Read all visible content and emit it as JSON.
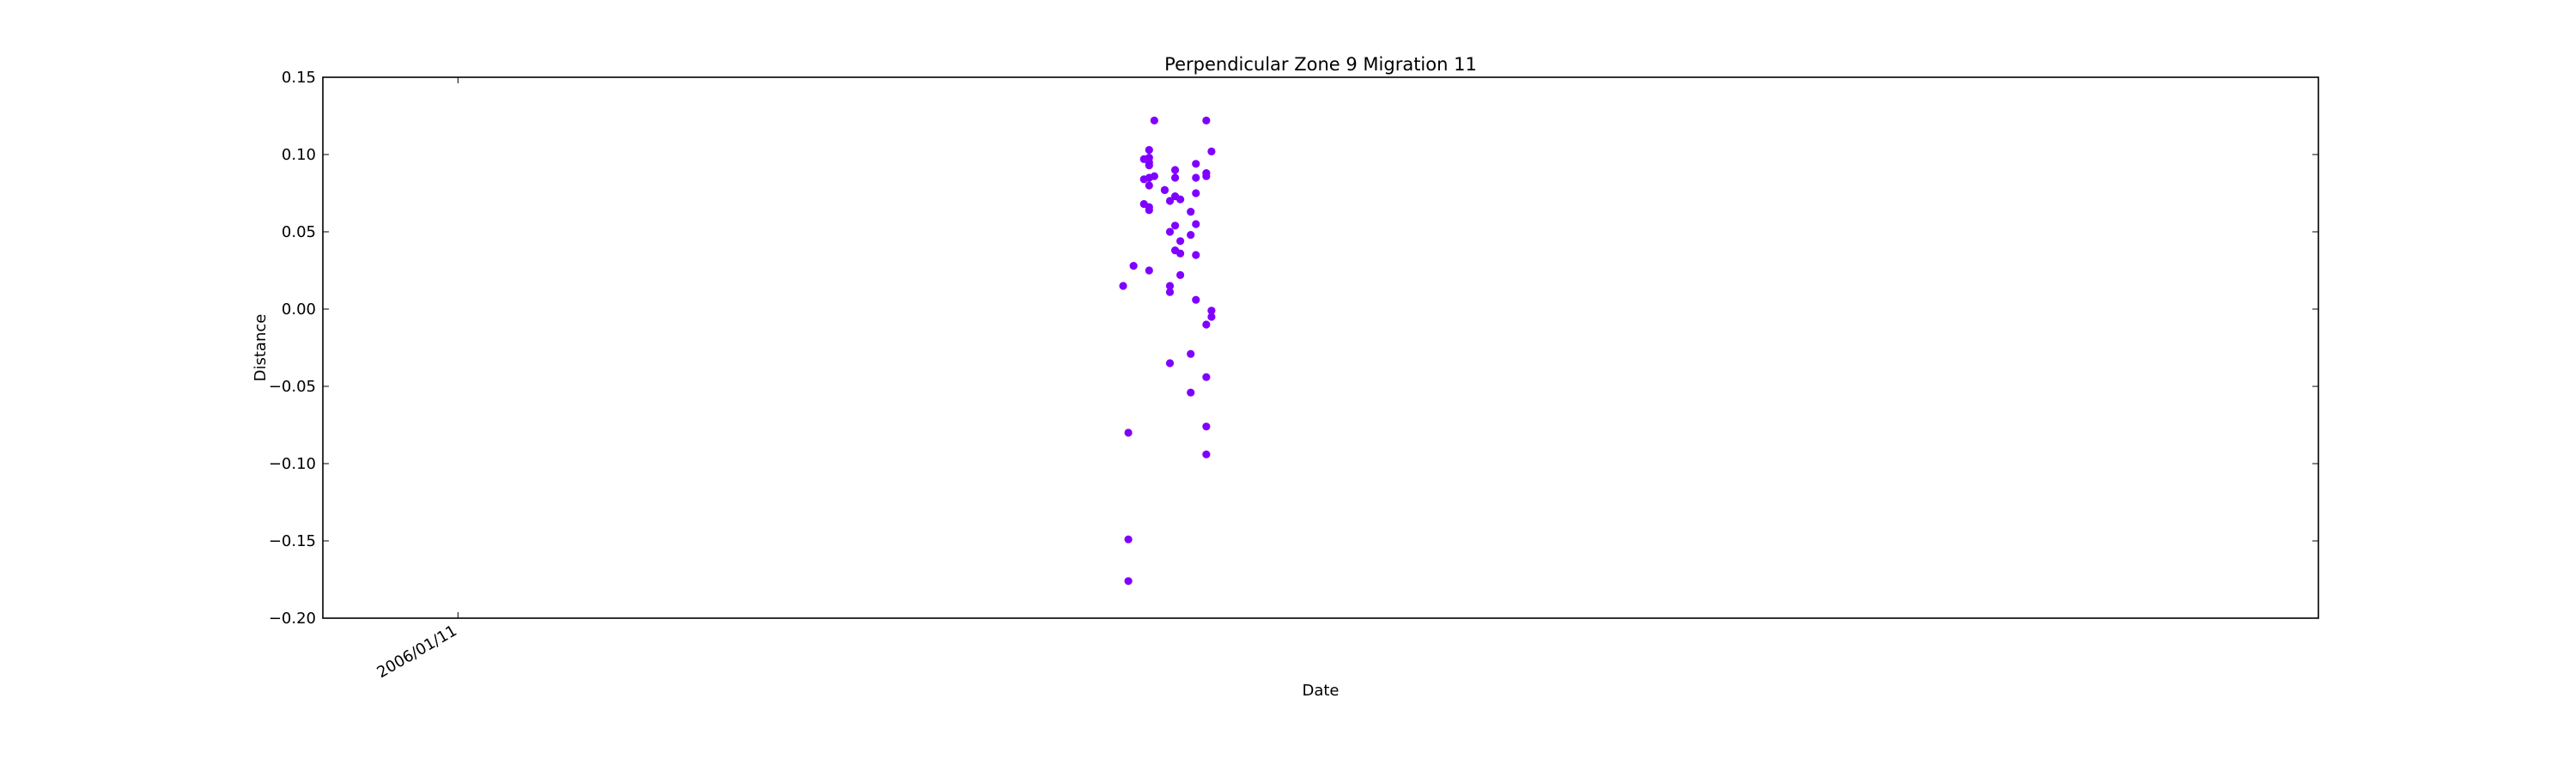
{
  "chart_data": {
    "type": "scatter",
    "title": "Perpendicular Zone 9 Migration 11",
    "xlabel": "Date",
    "ylabel": "Distance",
    "ylim": [
      -0.2,
      0.15
    ],
    "xlim": [
      "2005/12/16",
      "2007/01/04"
    ],
    "yticks": [
      "0.15",
      "0.10",
      "0.05",
      "0.00",
      "−0.05",
      "−0.10",
      "−0.15",
      "−0.20"
    ],
    "xticks": [
      {
        "value": "2006/01/11",
        "label": "2006/01/11"
      }
    ],
    "grid": false,
    "legend": "none",
    "marker_color": "#8000ff",
    "series": [
      {
        "points": [
          {
            "x": "2006/05/19",
            "y": 0.015
          },
          {
            "x": "2006/05/20",
            "y": -0.08
          },
          {
            "x": "2006/05/20",
            "y": -0.149
          },
          {
            "x": "2006/05/20",
            "y": -0.176
          },
          {
            "x": "2006/05/21",
            "y": 0.028
          },
          {
            "x": "2006/05/23",
            "y": 0.084
          },
          {
            "x": "2006/05/23",
            "y": 0.068
          },
          {
            "x": "2006/05/23",
            "y": 0.097
          },
          {
            "x": "2006/05/24",
            "y": 0.095
          },
          {
            "x": "2006/05/24",
            "y": 0.066
          },
          {
            "x": "2006/05/24",
            "y": 0.093
          },
          {
            "x": "2006/05/24",
            "y": 0.064
          },
          {
            "x": "2006/05/24",
            "y": 0.025
          },
          {
            "x": "2006/05/24",
            "y": 0.103
          },
          {
            "x": "2006/05/24",
            "y": 0.098
          },
          {
            "x": "2006/05/24",
            "y": 0.085
          },
          {
            "x": "2006/05/24",
            "y": 0.08
          },
          {
            "x": "2006/05/25",
            "y": 0.086
          },
          {
            "x": "2006/05/25",
            "y": 0.122
          },
          {
            "x": "2006/05/27",
            "y": 0.077
          },
          {
            "x": "2006/05/27",
            "y": 0.077
          },
          {
            "x": "2006/05/28",
            "y": 0.07
          },
          {
            "x": "2006/05/28",
            "y": 0.011
          },
          {
            "x": "2006/05/28",
            "y": -0.035
          },
          {
            "x": "2006/05/28",
            "y": 0.05
          },
          {
            "x": "2006/05/28",
            "y": 0.015
          },
          {
            "x": "2006/05/29",
            "y": 0.038
          },
          {
            "x": "2006/05/29",
            "y": 0.054
          },
          {
            "x": "2006/05/29",
            "y": 0.085
          },
          {
            "x": "2006/05/29",
            "y": 0.09
          },
          {
            "x": "2006/05/29",
            "y": 0.073
          },
          {
            "x": "2006/05/30",
            "y": 0.071
          },
          {
            "x": "2006/05/30",
            "y": 0.036
          },
          {
            "x": "2006/05/30",
            "y": 0.044
          },
          {
            "x": "2006/05/30",
            "y": 0.022
          },
          {
            "x": "2006/06/01",
            "y": -0.029
          },
          {
            "x": "2006/06/01",
            "y": 0.063
          },
          {
            "x": "2006/06/01",
            "y": 0.048
          },
          {
            "x": "2006/06/01",
            "y": -0.054
          },
          {
            "x": "2006/06/02",
            "y": 0.085
          },
          {
            "x": "2006/06/02",
            "y": 0.075
          },
          {
            "x": "2006/06/02",
            "y": 0.035
          },
          {
            "x": "2006/06/02",
            "y": 0.006
          },
          {
            "x": "2006/06/02",
            "y": 0.055
          },
          {
            "x": "2006/06/02",
            "y": 0.094
          },
          {
            "x": "2006/06/04",
            "y": 0.122
          },
          {
            "x": "2006/06/04",
            "y": 0.088
          },
          {
            "x": "2006/06/04",
            "y": 0.086
          },
          {
            "x": "2006/06/04",
            "y": -0.01
          },
          {
            "x": "2006/06/04",
            "y": -0.076
          },
          {
            "x": "2006/06/04",
            "y": -0.094
          },
          {
            "x": "2006/06/04",
            "y": -0.044
          },
          {
            "x": "2006/06/05",
            "y": -0.001
          },
          {
            "x": "2006/06/05",
            "y": -0.005
          },
          {
            "x": "2006/06/05",
            "y": 0.102
          }
        ]
      }
    ]
  }
}
